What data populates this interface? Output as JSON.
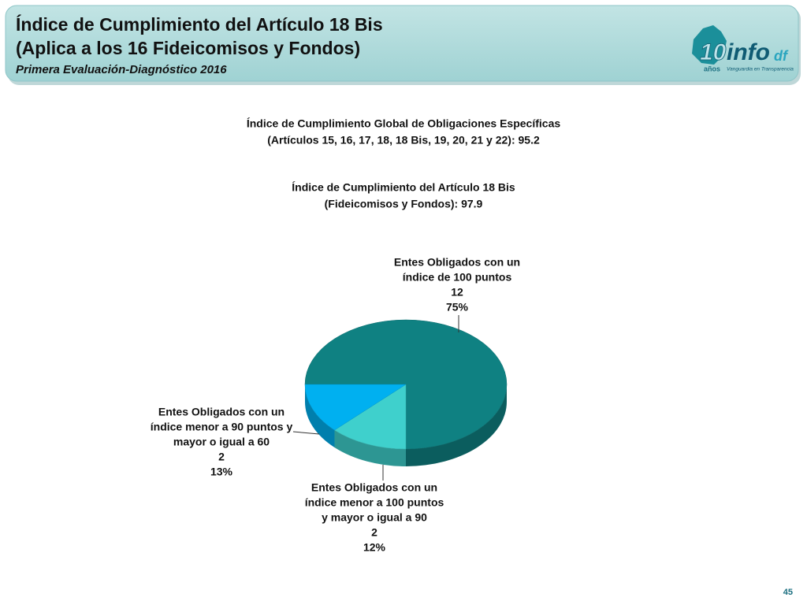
{
  "header": {
    "title_lines": [
      "Índice de Cumplimiento del Artículo 18 Bis",
      "(Aplica a los 16 Fideicomisos y Fondos)"
    ],
    "subtitle": "Primera Evaluación-Diagnóstico 2016",
    "logo": {
      "number": "10",
      "brand": "info",
      "suffix": "df",
      "years": "años",
      "tagline": "Vanguardia en Transparencia"
    }
  },
  "statements": [
    [
      "Índice de Cumplimiento Global de Obligaciones Específicas",
      "(Artículos 15, 16, 17, 18, 18 Bis, 19, 20, 21 y 22): 95.2"
    ],
    [
      "Índice de Cumplimiento del Artículo 18 Bis",
      "(Fideicomisos y Fondos): 97.9"
    ]
  ],
  "chart_data": {
    "type": "pie",
    "categories": [
      [
        "Entes Obligados con un",
        "índice de 100 puntos"
      ],
      [
        "Entes Obligados con un",
        "índice  menor a 100 puntos",
        "y mayor o igual a 90"
      ],
      [
        "Entes Obligados con un",
        "índice menor a 90 puntos y",
        "mayor o igual a 60"
      ]
    ],
    "values": [
      12,
      2,
      2
    ],
    "share_labels": [
      "75%",
      "12%",
      "13%"
    ],
    "colors": [
      "#0f8182",
      "#3fd0cc",
      "#00b0f0"
    ]
  },
  "page_number": 45
}
